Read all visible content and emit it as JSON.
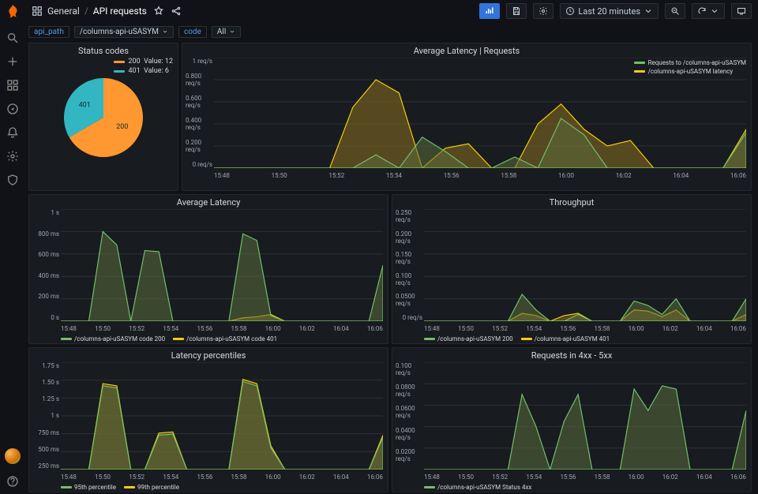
{
  "breadcrumb": {
    "icon": "dashboard",
    "folder": "General",
    "title": "API requests"
  },
  "toolbar": {
    "timerange": "Last 20 minutes"
  },
  "variables": {
    "api_path": {
      "label": "api_path",
      "value": "/columns-api-uSASYM"
    },
    "code": {
      "label": "code",
      "value": "All"
    }
  },
  "colors": {
    "green": "#73bf69",
    "yellow": "#f2cc0c",
    "orange": "#ff9830",
    "blue": "#32b6c2",
    "panel_bg": "#181b1f",
    "grid": "#2c3235"
  },
  "panels": {
    "status_codes": {
      "title": "Status codes",
      "type": "pie",
      "slices": [
        {
          "label": "200",
          "value": 12,
          "color": "#ff9830"
        },
        {
          "label": "401",
          "value": 6,
          "color": "#32b6c2"
        }
      ]
    },
    "avg_latency_requests": {
      "title": "Average Latency | Requests",
      "type": "area",
      "yticks": [
        "1 req/s",
        "0.800 req/s",
        "0.600 req/s",
        "0.400 req/s",
        "0.200 req/s",
        "0 req/s"
      ],
      "xticks": [
        "15:48",
        "15:50",
        "15:52",
        "15:54",
        "15:56",
        "15:58",
        "16:00",
        "16:02",
        "16:04",
        "16:06"
      ],
      "legend": [
        {
          "label": "Requests to /columns-api-uSASYM",
          "color": "#73bf69"
        },
        {
          "label": "/columns-api-uSASYM latency",
          "color": "#f2cc0c"
        }
      ],
      "series_green": [
        0,
        0,
        0,
        0,
        0,
        0,
        0,
        0.12,
        0,
        0.28,
        0.15,
        0,
        0,
        0.1,
        0,
        0.45,
        0.3,
        0,
        0,
        0,
        0,
        0,
        0,
        0.32
      ],
      "series_yellow": [
        0,
        0,
        0,
        0,
        0,
        0,
        0.55,
        0.8,
        0.68,
        0,
        0.18,
        0.22,
        0,
        0,
        0.4,
        0.58,
        0.35,
        0.2,
        0.25,
        0,
        0,
        0,
        0,
        0.35
      ]
    },
    "avg_latency": {
      "title": "Average Latency",
      "type": "area",
      "yticks": [
        "1 s",
        "800 ms",
        "600 ms",
        "400 ms",
        "200 ms",
        "0 s"
      ],
      "xticks": [
        "15:48",
        "15:50",
        "15:52",
        "15:54",
        "15:56",
        "15:58",
        "16:00",
        "16:02",
        "16:04",
        "16:06"
      ],
      "legend": [
        {
          "label": "/columns-api-uSASYM code 200",
          "color": "#73bf69"
        },
        {
          "label": "/columns-api-uSASYM code 401",
          "color": "#f2cc0c"
        }
      ],
      "series_green": [
        0,
        0,
        0,
        0.8,
        0.68,
        0,
        0.63,
        0.62,
        0,
        0,
        0,
        0,
        0,
        0.78,
        0.72,
        0.05,
        0,
        0,
        0,
        0,
        0,
        0,
        0,
        0.5
      ],
      "series_yellow": [
        0,
        0,
        0,
        0,
        0,
        0,
        0,
        0,
        0,
        0,
        0,
        0,
        0,
        0.03,
        0.04,
        0.06,
        0,
        0,
        0,
        0,
        0,
        0,
        0,
        0
      ]
    },
    "throughput": {
      "title": "Throughput",
      "type": "area",
      "yticks": [
        "0.250 req/s",
        "0.200 req/s",
        "0.150 req/s",
        "0.100 req/s",
        "0.0500 req/s",
        "0 req/s"
      ],
      "xticks": [
        "15:48",
        "15:50",
        "15:52",
        "15:54",
        "15:56",
        "15:58",
        "16:00",
        "16:02",
        "16:04",
        "16:06"
      ],
      "legend": [
        {
          "label": "/columns-api-uSASYM 200",
          "color": "#73bf69"
        },
        {
          "label": "/columns-api-uSASYM 401",
          "color": "#f2cc0c"
        }
      ],
      "series_green": [
        0,
        0,
        0,
        0,
        0,
        0,
        0,
        0.24,
        0.1,
        0,
        0,
        0.06,
        0,
        0,
        0,
        0.18,
        0.14,
        0.06,
        0.2,
        0,
        0,
        0,
        0,
        0.2
      ],
      "series_yellow": [
        0,
        0,
        0,
        0,
        0,
        0,
        0,
        0.07,
        0.05,
        0,
        0.05,
        0.07,
        0,
        0,
        0,
        0.1,
        0.09,
        0.04,
        0.1,
        0,
        0,
        0,
        0,
        0.06
      ]
    },
    "latency_percentiles": {
      "title": "Latency percentiles",
      "type": "area",
      "yticks": [
        "1.75 s",
        "1.50 s",
        "1.25 s",
        "1 s",
        "750 ms",
        "500 ms",
        "250 ms"
      ],
      "xticks": [
        "15:48",
        "15:50",
        "15:52",
        "15:54",
        "15:56",
        "15:58",
        "16:00",
        "16:02",
        "16:04",
        "16:06"
      ],
      "legend": [
        {
          "label": "95th percentile",
          "color": "#73bf69"
        },
        {
          "label": "99th percentile",
          "color": "#f2cc0c"
        }
      ],
      "series_green": [
        0,
        0,
        0,
        0.78,
        0.76,
        0,
        0,
        0.32,
        0.33,
        0,
        0,
        0,
        0,
        0.82,
        0.78,
        0.2,
        0,
        0,
        0,
        0,
        0,
        0,
        0,
        0.3
      ],
      "series_yellow": [
        0,
        0,
        0,
        0.8,
        0.78,
        0,
        0,
        0.34,
        0.35,
        0,
        0,
        0,
        0,
        0.84,
        0.8,
        0.22,
        0,
        0,
        0,
        0,
        0,
        0,
        0,
        0.32
      ]
    },
    "requests_4xx5xx": {
      "title": "Requests in 4xx - 5xx",
      "type": "area",
      "yticks": [
        "0.100 req/s",
        "0.0800 req/s",
        "0.0600 req/s",
        "0.0400 req/s",
        "0.0200 req/s",
        ""
      ],
      "xticks": [
        "15:48",
        "15:50",
        "15:52",
        "15:54",
        "15:56",
        "15:58",
        "16:00",
        "16:02",
        "16:04",
        "16:06"
      ],
      "legend": [
        {
          "label": "/columns-api-uSASYM Status 4xx",
          "color": "#73bf69"
        }
      ],
      "series_green": [
        0,
        0,
        0,
        0,
        0,
        0,
        0,
        0.7,
        0.4,
        0,
        0.45,
        0.7,
        0,
        0,
        0,
        0.75,
        0.55,
        0.78,
        0.75,
        0,
        0,
        0,
        0,
        0.55
      ],
      "series_yellow": []
    }
  }
}
